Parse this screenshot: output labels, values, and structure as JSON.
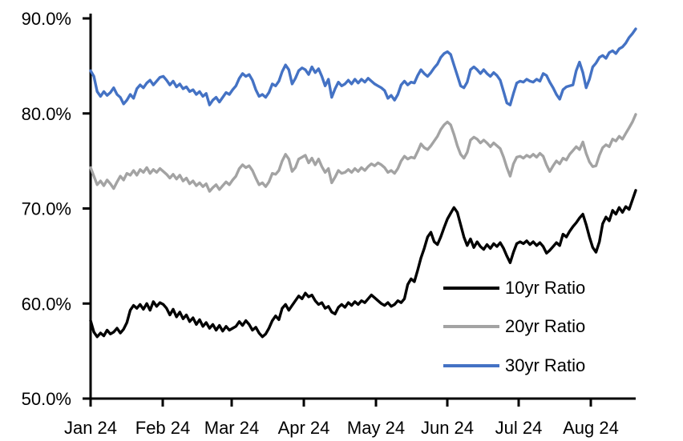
{
  "chart_data": {
    "type": "line",
    "title": "",
    "background": "#FFFFFF",
    "grid": false,
    "legend_position": "inside-lower-right",
    "x_axis": {
      "label": "",
      "tick_labels": [
        "Jan 24",
        "Feb 24",
        "Mar 24",
        "Apr 24",
        "May 24",
        "Jun 24",
        "Jul 24",
        "Aug 24"
      ]
    },
    "y_axis": {
      "label": "",
      "unit": "%",
      "min": 50,
      "max": 90,
      "tick_labels": [
        "90.0%",
        "80.0%",
        "70.0%",
        "60.0%",
        "50.0%"
      ]
    },
    "axis_color": "#000000",
    "series": [
      {
        "name": "10yr Ratio",
        "color": "#000000",
        "values": [
          58.2,
          57.0,
          56.5,
          56.9,
          56.6,
          57.2,
          56.8,
          57.0,
          57.4,
          56.9,
          57.3,
          58.0,
          59.3,
          59.8,
          59.5,
          59.9,
          59.4,
          60.0,
          59.3,
          60.2,
          59.7,
          60.1,
          59.9,
          59.5,
          58.8,
          59.4,
          58.6,
          59.1,
          58.4,
          58.8,
          58.1,
          58.5,
          57.8,
          58.3,
          57.6,
          58.0,
          57.4,
          57.8,
          57.2,
          57.7,
          57.1,
          57.6,
          57.2,
          57.4,
          57.6,
          58.1,
          57.7,
          58.2,
          57.8,
          57.2,
          57.5,
          56.9,
          56.5,
          56.8,
          57.4,
          58.2,
          58.7,
          58.3,
          59.5,
          59.9,
          59.3,
          59.8,
          60.3,
          60.8,
          60.5,
          61.1,
          60.7,
          60.9,
          60.3,
          59.9,
          60.1,
          59.5,
          59.7,
          59.1,
          58.9,
          59.6,
          59.9,
          59.6,
          60.1,
          59.8,
          60.2,
          59.9,
          60.3,
          60.1,
          60.5,
          60.9,
          60.6,
          60.3,
          60.0,
          59.8,
          60.1,
          59.7,
          59.9,
          60.3,
          60.1,
          60.5,
          62.0,
          62.6,
          62.3,
          63.5,
          64.8,
          65.8,
          67.0,
          67.5,
          66.5,
          66.2,
          67.0,
          68.0,
          68.9,
          69.5,
          70.1,
          69.6,
          68.3,
          67.0,
          66.1,
          66.8,
          65.9,
          66.5,
          66.0,
          65.7,
          66.2,
          65.8,
          66.3,
          66.0,
          66.4,
          65.8,
          65.0,
          64.3,
          65.4,
          66.3,
          66.5,
          66.3,
          66.6,
          66.2,
          66.5,
          66.1,
          66.4,
          66.0,
          65.3,
          65.6,
          66.0,
          66.4,
          66.1,
          67.3,
          67.0,
          67.6,
          68.1,
          68.5,
          69.0,
          69.4,
          68.3,
          67.0,
          65.9,
          65.4,
          66.5,
          68.4,
          69.1,
          68.7,
          69.8,
          69.4,
          70.1,
          69.6,
          70.2,
          69.9,
          70.9,
          71.9
        ]
      },
      {
        "name": "20yr Ratio",
        "color": "#A3A3A3",
        "values": [
          74.3,
          73.4,
          72.5,
          72.9,
          72.4,
          73.0,
          72.6,
          72.1,
          72.8,
          73.4,
          73.0,
          73.7,
          73.5,
          74.0,
          73.5,
          74.1,
          73.8,
          74.3,
          73.7,
          74.1,
          73.8,
          74.2,
          73.9,
          73.6,
          73.2,
          73.6,
          73.1,
          73.5,
          72.9,
          73.2,
          72.6,
          72.9,
          72.4,
          72.7,
          72.3,
          72.6,
          71.8,
          72.2,
          72.5,
          72.0,
          72.4,
          72.8,
          72.5,
          73.0,
          73.4,
          74.2,
          74.6,
          74.3,
          74.5,
          74.0,
          73.2,
          72.5,
          72.7,
          72.3,
          72.8,
          73.7,
          73.6,
          74.0,
          75.0,
          75.7,
          75.2,
          73.9,
          74.3,
          75.2,
          75.4,
          75.6,
          74.8,
          75.3,
          74.6,
          75.2,
          74.4,
          73.8,
          74.2,
          72.7,
          73.3,
          74.0,
          73.7,
          73.8,
          74.1,
          73.8,
          74.2,
          73.9,
          74.3,
          74.0,
          74.4,
          74.7,
          74.5,
          74.8,
          74.6,
          74.3,
          73.8,
          74.0,
          73.7,
          74.2,
          75.0,
          75.5,
          75.2,
          75.4,
          75.3,
          76.0,
          76.8,
          76.4,
          76.2,
          76.6,
          77.1,
          77.6,
          78.3,
          78.8,
          79.1,
          78.8,
          77.8,
          76.6,
          75.7,
          75.3,
          75.9,
          77.2,
          77.5,
          77.3,
          76.9,
          77.2,
          76.9,
          76.5,
          76.9,
          76.6,
          76.3,
          75.4,
          74.3,
          73.4,
          74.7,
          75.4,
          75.5,
          75.3,
          75.6,
          75.4,
          75.7,
          75.4,
          75.8,
          75.5,
          74.6,
          73.9,
          74.5,
          75.0,
          74.7,
          75.3,
          75.1,
          75.7,
          76.1,
          76.5,
          76.2,
          77.0,
          75.8,
          74.9,
          74.4,
          74.5,
          75.6,
          76.4,
          76.7,
          76.5,
          77.3,
          77.1,
          77.6,
          77.3,
          77.9,
          78.5,
          79.1,
          79.9
        ]
      },
      {
        "name": "30yr Ratio",
        "color": "#4472C4",
        "values": [
          84.5,
          83.9,
          82.3,
          81.8,
          82.3,
          81.9,
          82.2,
          82.7,
          82.0,
          81.7,
          81.0,
          81.4,
          82.0,
          81.6,
          82.6,
          83.0,
          82.7,
          83.2,
          83.5,
          83.0,
          83.4,
          83.8,
          83.9,
          83.5,
          83.0,
          83.4,
          82.8,
          83.1,
          82.6,
          82.8,
          82.3,
          82.5,
          82.0,
          82.3,
          81.8,
          82.1,
          80.9,
          81.4,
          81.7,
          81.2,
          81.7,
          82.2,
          82.0,
          82.5,
          82.9,
          83.7,
          84.2,
          83.9,
          84.1,
          83.5,
          82.5,
          81.8,
          82.0,
          81.7,
          82.2,
          83.1,
          82.9,
          83.4,
          84.4,
          85.1,
          84.6,
          83.1,
          83.7,
          84.5,
          84.8,
          84.6,
          84.1,
          84.9,
          84.3,
          84.7,
          83.9,
          82.9,
          83.6,
          81.7,
          82.6,
          83.3,
          82.9,
          83.1,
          83.5,
          83.1,
          83.6,
          83.2,
          83.6,
          83.3,
          83.7,
          83.4,
          83.1,
          82.9,
          82.7,
          82.4,
          81.6,
          81.9,
          81.4,
          82.0,
          83.0,
          83.4,
          83.0,
          83.3,
          83.2,
          84.0,
          84.6,
          84.2,
          83.9,
          84.3,
          84.8,
          85.2,
          85.9,
          86.3,
          86.5,
          86.2,
          85.1,
          84.0,
          82.9,
          82.7,
          83.3,
          84.6,
          84.9,
          84.6,
          84.2,
          84.6,
          84.2,
          83.9,
          84.3,
          84.0,
          83.5,
          82.3,
          81.1,
          80.9,
          82.1,
          83.2,
          83.4,
          83.3,
          83.6,
          83.4,
          83.3,
          83.6,
          83.4,
          84.2,
          84.0,
          83.3,
          82.7,
          82.0,
          81.5,
          82.5,
          82.8,
          82.9,
          83.0,
          84.5,
          85.4,
          84.3,
          82.7,
          83.6,
          84.9,
          85.3,
          85.9,
          86.1,
          85.8,
          86.4,
          86.6,
          86.3,
          86.8,
          87.0,
          87.4,
          88.0,
          88.4,
          88.9
        ]
      }
    ]
  }
}
